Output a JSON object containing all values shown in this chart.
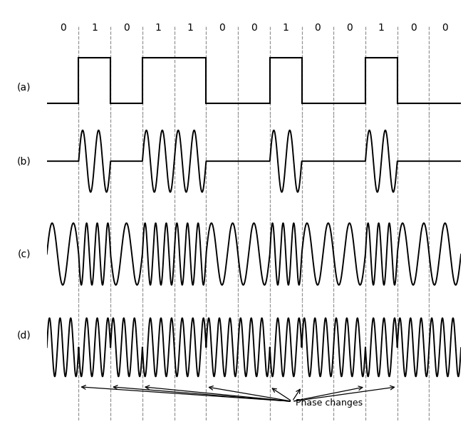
{
  "bits": [
    0,
    1,
    0,
    1,
    1,
    0,
    0,
    1,
    0,
    0,
    1,
    0,
    0
  ],
  "n_bits": 13,
  "bit_duration": 1.0,
  "ask_freq": 2.0,
  "fsk_freq_high": 3.0,
  "fsk_freq_low": 1.5,
  "psk_freq": 3.0,
  "labels_a": "(a)",
  "labels_b": "(b)",
  "labels_c": "(c)",
  "labels_d": "(d)",
  "phase_changes_label": "Phase changes",
  "background_color": "#ffffff",
  "line_color": "#000000",
  "dashed_color": "#888888",
  "title_bits": [
    "0",
    "1",
    "0",
    "1",
    "1",
    "0",
    "0",
    "1",
    "0",
    "0",
    "1",
    "0",
    "0"
  ]
}
